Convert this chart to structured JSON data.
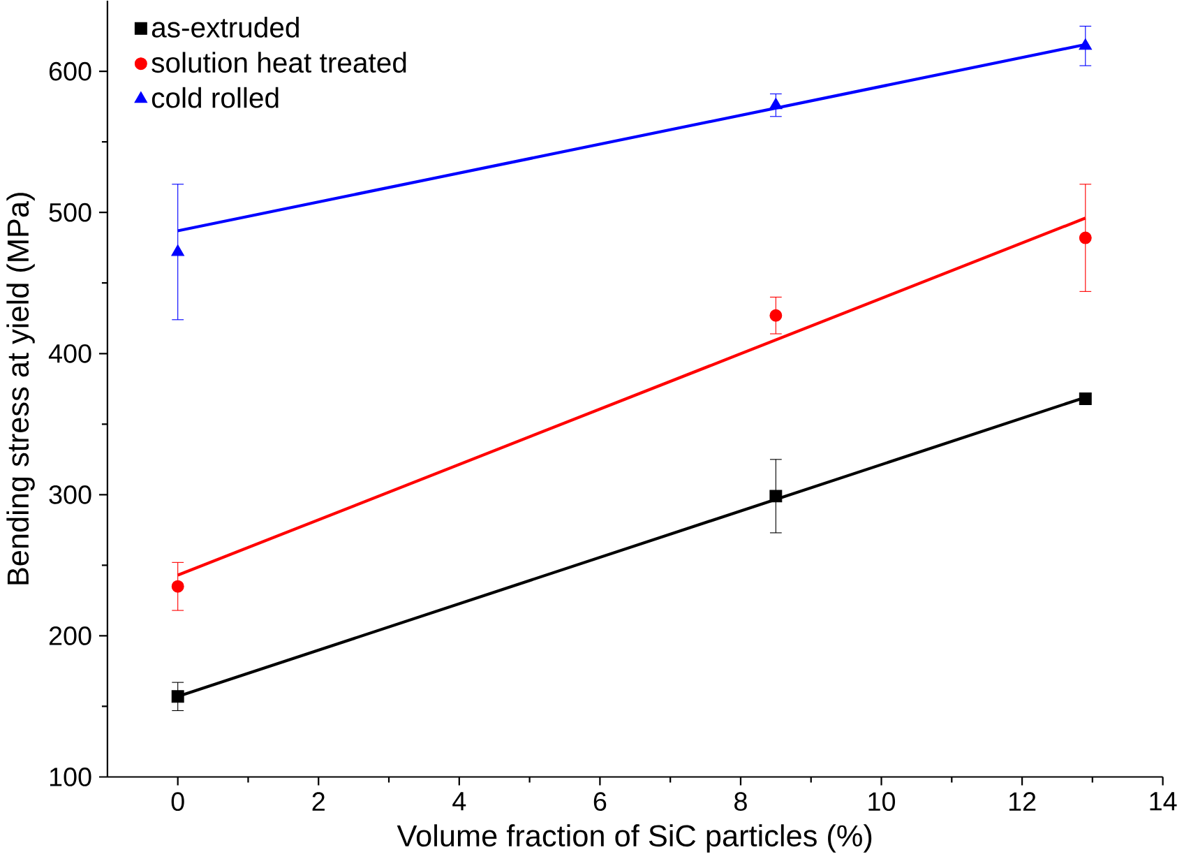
{
  "chart_data": {
    "type": "scatter",
    "xlabel": "Volume fraction of SiC particles (%)",
    "ylabel": "Bending stress at yield (MPa)",
    "xlim": [
      -1,
      14
    ],
    "xticks": [
      0,
      2,
      4,
      6,
      8,
      10,
      12,
      14
    ],
    "ylim": [
      100,
      650
    ],
    "yticks": [
      100,
      200,
      300,
      400,
      500,
      600
    ],
    "grid": false,
    "legend": "top left",
    "series": [
      {
        "name": "as-extruded",
        "color": "#000000",
        "marker": "square",
        "x": [
          0,
          8.5,
          12.9
        ],
        "values": [
          157,
          299,
          368
        ],
        "errors": [
          10,
          26,
          null
        ]
      },
      {
        "name": "solution heat treated",
        "color": "#ff0000",
        "marker": "circle",
        "x": [
          0,
          8.5,
          12.9
        ],
        "values": [
          235,
          427,
          482
        ],
        "errors": [
          17,
          13,
          38
        ]
      },
      {
        "name": "cold rolled",
        "color": "#0000ff",
        "marker": "triangle",
        "x": [
          0,
          8.5,
          12.9
        ],
        "values": [
          472,
          576,
          618
        ],
        "errors": [
          48,
          8,
          14
        ]
      },
      {
        "type": "line",
        "color": "#000000",
        "marker": "none",
        "x": [
          0,
          12.9
        ],
        "values": [
          157,
          369
        ]
      },
      {
        "type": "line",
        "color": "#ff0000",
        "marker": "none",
        "x": [
          0,
          12.9
        ],
        "values": [
          243,
          496
        ]
      },
      {
        "type": "line",
        "color": "#0000ff",
        "marker": "none",
        "x": [
          0,
          12.9
        ],
        "values": [
          487,
          619
        ]
      }
    ]
  }
}
